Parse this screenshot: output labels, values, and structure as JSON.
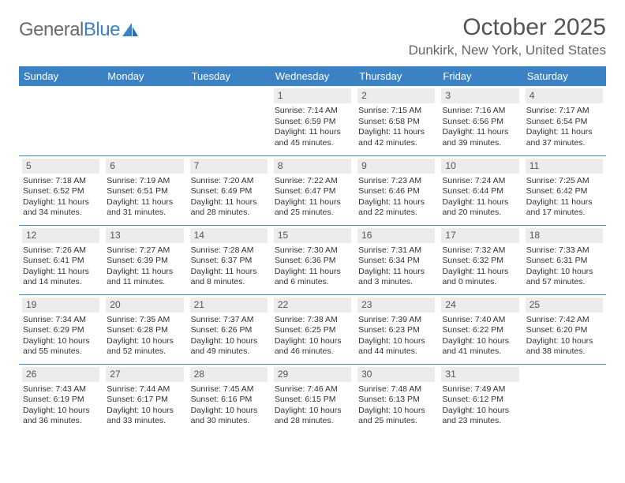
{
  "brand": {
    "part1": "General",
    "part2": "Blue"
  },
  "title": "October 2025",
  "location": "Dunkirk, New York, United States",
  "colors": {
    "accent": "#3b82c4",
    "header_bg": "#3b82c4",
    "header_text": "#ffffff",
    "daynum_bg": "#ececec",
    "text": "#333333",
    "muted": "#666666"
  },
  "weekdays": [
    "Sunday",
    "Monday",
    "Tuesday",
    "Wednesday",
    "Thursday",
    "Friday",
    "Saturday"
  ],
  "weeks": [
    [
      {
        "n": "",
        "lines": []
      },
      {
        "n": "",
        "lines": []
      },
      {
        "n": "",
        "lines": []
      },
      {
        "n": "1",
        "lines": [
          "Sunrise: 7:14 AM",
          "Sunset: 6:59 PM",
          "Daylight: 11 hours and 45 minutes."
        ]
      },
      {
        "n": "2",
        "lines": [
          "Sunrise: 7:15 AM",
          "Sunset: 6:58 PM",
          "Daylight: 11 hours and 42 minutes."
        ]
      },
      {
        "n": "3",
        "lines": [
          "Sunrise: 7:16 AM",
          "Sunset: 6:56 PM",
          "Daylight: 11 hours and 39 minutes."
        ]
      },
      {
        "n": "4",
        "lines": [
          "Sunrise: 7:17 AM",
          "Sunset: 6:54 PM",
          "Daylight: 11 hours and 37 minutes."
        ]
      }
    ],
    [
      {
        "n": "5",
        "lines": [
          "Sunrise: 7:18 AM",
          "Sunset: 6:52 PM",
          "Daylight: 11 hours and 34 minutes."
        ]
      },
      {
        "n": "6",
        "lines": [
          "Sunrise: 7:19 AM",
          "Sunset: 6:51 PM",
          "Daylight: 11 hours and 31 minutes."
        ]
      },
      {
        "n": "7",
        "lines": [
          "Sunrise: 7:20 AM",
          "Sunset: 6:49 PM",
          "Daylight: 11 hours and 28 minutes."
        ]
      },
      {
        "n": "8",
        "lines": [
          "Sunrise: 7:22 AM",
          "Sunset: 6:47 PM",
          "Daylight: 11 hours and 25 minutes."
        ]
      },
      {
        "n": "9",
        "lines": [
          "Sunrise: 7:23 AM",
          "Sunset: 6:46 PM",
          "Daylight: 11 hours and 22 minutes."
        ]
      },
      {
        "n": "10",
        "lines": [
          "Sunrise: 7:24 AM",
          "Sunset: 6:44 PM",
          "Daylight: 11 hours and 20 minutes."
        ]
      },
      {
        "n": "11",
        "lines": [
          "Sunrise: 7:25 AM",
          "Sunset: 6:42 PM",
          "Daylight: 11 hours and 17 minutes."
        ]
      }
    ],
    [
      {
        "n": "12",
        "lines": [
          "Sunrise: 7:26 AM",
          "Sunset: 6:41 PM",
          "Daylight: 11 hours and 14 minutes."
        ]
      },
      {
        "n": "13",
        "lines": [
          "Sunrise: 7:27 AM",
          "Sunset: 6:39 PM",
          "Daylight: 11 hours and 11 minutes."
        ]
      },
      {
        "n": "14",
        "lines": [
          "Sunrise: 7:28 AM",
          "Sunset: 6:37 PM",
          "Daylight: 11 hours and 8 minutes."
        ]
      },
      {
        "n": "15",
        "lines": [
          "Sunrise: 7:30 AM",
          "Sunset: 6:36 PM",
          "Daylight: 11 hours and 6 minutes."
        ]
      },
      {
        "n": "16",
        "lines": [
          "Sunrise: 7:31 AM",
          "Sunset: 6:34 PM",
          "Daylight: 11 hours and 3 minutes."
        ]
      },
      {
        "n": "17",
        "lines": [
          "Sunrise: 7:32 AM",
          "Sunset: 6:32 PM",
          "Daylight: 11 hours and 0 minutes."
        ]
      },
      {
        "n": "18",
        "lines": [
          "Sunrise: 7:33 AM",
          "Sunset: 6:31 PM",
          "Daylight: 10 hours and 57 minutes."
        ]
      }
    ],
    [
      {
        "n": "19",
        "lines": [
          "Sunrise: 7:34 AM",
          "Sunset: 6:29 PM",
          "Daylight: 10 hours and 55 minutes."
        ]
      },
      {
        "n": "20",
        "lines": [
          "Sunrise: 7:35 AM",
          "Sunset: 6:28 PM",
          "Daylight: 10 hours and 52 minutes."
        ]
      },
      {
        "n": "21",
        "lines": [
          "Sunrise: 7:37 AM",
          "Sunset: 6:26 PM",
          "Daylight: 10 hours and 49 minutes."
        ]
      },
      {
        "n": "22",
        "lines": [
          "Sunrise: 7:38 AM",
          "Sunset: 6:25 PM",
          "Daylight: 10 hours and 46 minutes."
        ]
      },
      {
        "n": "23",
        "lines": [
          "Sunrise: 7:39 AM",
          "Sunset: 6:23 PM",
          "Daylight: 10 hours and 44 minutes."
        ]
      },
      {
        "n": "24",
        "lines": [
          "Sunrise: 7:40 AM",
          "Sunset: 6:22 PM",
          "Daylight: 10 hours and 41 minutes."
        ]
      },
      {
        "n": "25",
        "lines": [
          "Sunrise: 7:42 AM",
          "Sunset: 6:20 PM",
          "Daylight: 10 hours and 38 minutes."
        ]
      }
    ],
    [
      {
        "n": "26",
        "lines": [
          "Sunrise: 7:43 AM",
          "Sunset: 6:19 PM",
          "Daylight: 10 hours and 36 minutes."
        ]
      },
      {
        "n": "27",
        "lines": [
          "Sunrise: 7:44 AM",
          "Sunset: 6:17 PM",
          "Daylight: 10 hours and 33 minutes."
        ]
      },
      {
        "n": "28",
        "lines": [
          "Sunrise: 7:45 AM",
          "Sunset: 6:16 PM",
          "Daylight: 10 hours and 30 minutes."
        ]
      },
      {
        "n": "29",
        "lines": [
          "Sunrise: 7:46 AM",
          "Sunset: 6:15 PM",
          "Daylight: 10 hours and 28 minutes."
        ]
      },
      {
        "n": "30",
        "lines": [
          "Sunrise: 7:48 AM",
          "Sunset: 6:13 PM",
          "Daylight: 10 hours and 25 minutes."
        ]
      },
      {
        "n": "31",
        "lines": [
          "Sunrise: 7:49 AM",
          "Sunset: 6:12 PM",
          "Daylight: 10 hours and 23 minutes."
        ]
      },
      {
        "n": "",
        "lines": []
      }
    ]
  ]
}
